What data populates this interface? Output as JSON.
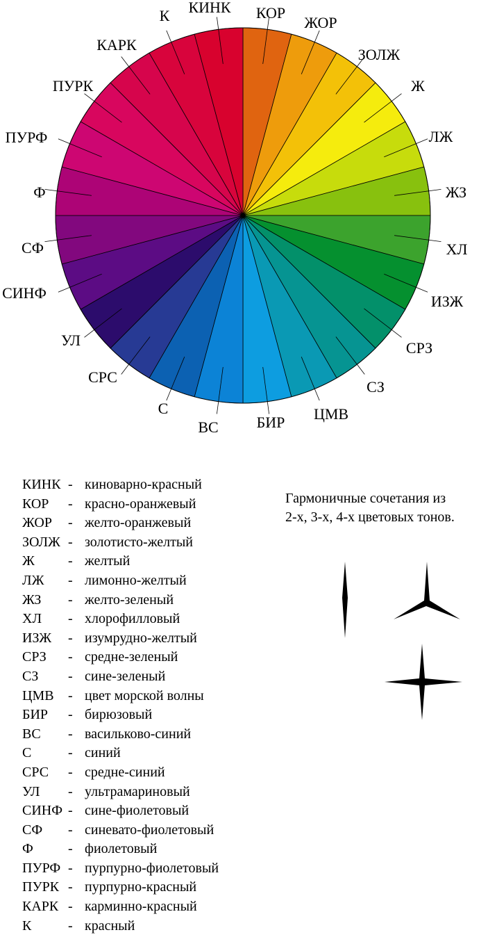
{
  "wheel": {
    "segments": [
      {
        "abbr": "КОР",
        "color": "#e06410"
      },
      {
        "abbr": "ЖОР",
        "color": "#ee9c0c"
      },
      {
        "abbr": "ЗОЛЖ",
        "color": "#f3c108"
      },
      {
        "abbr": "Ж",
        "color": "#f5ec0d"
      },
      {
        "abbr": "ЛЖ",
        "color": "#c7dc0c"
      },
      {
        "abbr": "ЖЗ",
        "color": "#88c10e"
      },
      {
        "abbr": "ХЛ",
        "color": "#3ca32d"
      },
      {
        "abbr": "ИЗЖ",
        "color": "#05902f"
      },
      {
        "abbr": "СРЗ",
        "color": "#03906a"
      },
      {
        "abbr": "СЗ",
        "color": "#069492"
      },
      {
        "abbr": "ЦМВ",
        "color": "#0a99b4"
      },
      {
        "abbr": "БИР",
        "color": "#0d9de0"
      },
      {
        "abbr": "ВС",
        "color": "#0c83d6"
      },
      {
        "abbr": "С",
        "color": "#0c61b2"
      },
      {
        "abbr": "СРС",
        "color": "#273a94"
      },
      {
        "abbr": "УЛ",
        "color": "#2c0c6c"
      },
      {
        "abbr": "СИНФ",
        "color": "#5c0c84"
      },
      {
        "abbr": "СФ",
        "color": "#82087e"
      },
      {
        "abbr": "Ф",
        "color": "#ad0476"
      },
      {
        "abbr": "ПУРФ",
        "color": "#cd0672"
      },
      {
        "abbr": "ПУРК",
        "color": "#d8065e"
      },
      {
        "abbr": "КАРК",
        "color": "#d6054c"
      },
      {
        "abbr": "К",
        "color": "#d8043c"
      },
      {
        "abbr": "КИНК",
        "color": "#d8022e"
      }
    ]
  },
  "legend": [
    {
      "abbr": "КИНК",
      "dash": "-",
      "desc": "киноварно-красный"
    },
    {
      "abbr": "КОР",
      "dash": "-",
      "desc": "красно-оранжевый"
    },
    {
      "abbr": "ЖОР",
      "dash": "-",
      "desc": "желто-оранжевый"
    },
    {
      "abbr": "ЗОЛЖ",
      "dash": "-",
      "desc": "золотисто-желтый"
    },
    {
      "abbr": "Ж",
      "dash": "-",
      "desc": "желтый"
    },
    {
      "abbr": "ЛЖ",
      "dash": "-",
      "desc": "лимонно-желтый"
    },
    {
      "abbr": "ЖЗ",
      "dash": "-",
      "desc": "желто-зеленый"
    },
    {
      "abbr": "ХЛ",
      "dash": "-",
      "desc": "хлорофилловый"
    },
    {
      "abbr": "ИЗЖ",
      "dash": "-",
      "desc": "изумрудно-желтый"
    },
    {
      "abbr": "СРЗ",
      "dash": "-",
      "desc": "средне-зеленый"
    },
    {
      "abbr": "СЗ",
      "dash": "-",
      "desc": "сине-зеленый"
    },
    {
      "abbr": "ЦМВ",
      "dash": "-",
      "desc": "цвет морской волны"
    },
    {
      "abbr": "БИР",
      "dash": "-",
      "desc": "бирюзовый"
    },
    {
      "abbr": "ВС",
      "dash": "-",
      "desc": "васильково-синий"
    },
    {
      "abbr": "С",
      "dash": "-",
      "desc": "синий"
    },
    {
      "abbr": "СРС",
      "dash": "-",
      "desc": "средне-синий"
    },
    {
      "abbr": "УЛ",
      "dash": "-",
      "desc": "ультрамариновый"
    },
    {
      "abbr": "СИНФ",
      "dash": "-",
      "desc": "сине-фиолетовый"
    },
    {
      "abbr": "СФ",
      "dash": "-",
      "desc": "синевато-фиолетовый"
    },
    {
      "abbr": "Ф",
      "dash": "-",
      "desc": "фиолетовый"
    },
    {
      "abbr": "ПУРФ",
      "dash": "-",
      "desc": "пурпурно-фиолетовый"
    },
    {
      "abbr": "ПУРК",
      "dash": "-",
      "desc": "пурпурно-красный"
    },
    {
      "abbr": "КАРК",
      "dash": "-",
      "desc": "карминно-красный"
    },
    {
      "abbr": "К",
      "dash": "-",
      "desc": "красный"
    }
  ],
  "harmony": {
    "title_line1": "Гармоничные сочетания из",
    "title_line2": "2-х, 3-х, 4-х цветовых тонов.",
    "glyphs": [
      {
        "name": "two-tone-glyph",
        "points": 2
      },
      {
        "name": "three-tone-glyph",
        "points": 3
      },
      {
        "name": "four-tone-glyph",
        "points": 4
      }
    ]
  }
}
